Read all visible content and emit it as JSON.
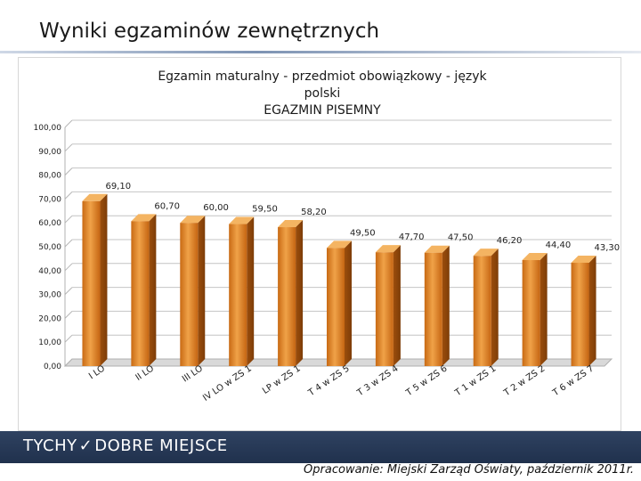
{
  "page": {
    "title": "Wyniki egzaminów zewnętrznych",
    "logo_part1": "TYCHY",
    "logo_part2": "DOBRE MIEJSCE",
    "credit": "Opracowanie: Miejski Zarząd Oświaty, październik 2011r."
  },
  "chart_data": {
    "type": "bar",
    "title_lines": [
      "Egzamin maturalny - przedmiot obowiązkowy - język",
      "polski",
      "EGAZMIN PISEMNY"
    ],
    "categories": [
      "I LO",
      "II LO",
      "III LO",
      "IV LO w ZS 1",
      "LP w ZS 1",
      "T 4 w ZS 5",
      "T 3 w ZS 4",
      "T 5 w ZS 6",
      "T 1 w ZS 1",
      "T 2 w ZS 2",
      "T 6 w ZS 7"
    ],
    "values": [
      69.1,
      60.7,
      60.0,
      59.5,
      58.2,
      49.5,
      47.7,
      47.5,
      46.2,
      44.4,
      43.3
    ],
    "value_labels": [
      "69,10",
      "60,70",
      "60,00",
      "59,50",
      "58,20",
      "49,50",
      "47,70",
      "47,50",
      "46,20",
      "44,40",
      "43,30"
    ],
    "ylim": [
      0,
      100
    ],
    "yticks": [
      "0,00",
      "10,00",
      "20,00",
      "30,00",
      "40,00",
      "50,00",
      "60,00",
      "70,00",
      "80,00",
      "90,00",
      "100,00"
    ],
    "xlabel": "",
    "ylabel": "",
    "grid": true,
    "legend": "none",
    "bar_color": "#e08a2b"
  }
}
